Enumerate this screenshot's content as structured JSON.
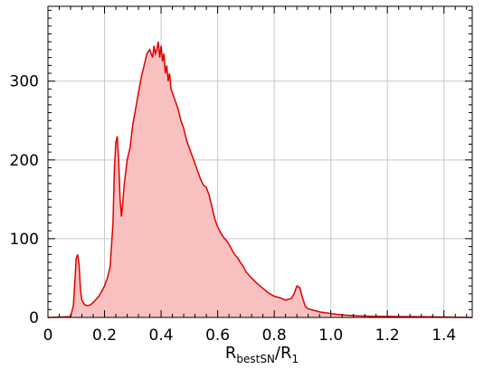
{
  "chart_data": {
    "type": "area",
    "xlabel_main": "R",
    "xlabel_sub1": "bestSN",
    "xlabel_sep": "/R",
    "xlabel_sub2": "1",
    "ylabel": "",
    "xlim": [
      0,
      1.5
    ],
    "ylim": [
      0,
      395
    ],
    "x_ticks": [
      0,
      0.2,
      0.4,
      0.6,
      0.8,
      1.0,
      1.2,
      1.4
    ],
    "x_tick_labels": [
      "0",
      "0.2",
      "0.4",
      "0.6",
      "0.8",
      "1.0",
      "1.2",
      "1.4"
    ],
    "y_ticks": [
      0,
      100,
      200,
      300
    ],
    "y_tick_labels": [
      "0",
      "100",
      "200",
      "300"
    ],
    "grid": true,
    "line_color": "#e00000",
    "fill_color": "#f9c0c0",
    "series": [
      {
        "x": [
          0.0,
          0.08,
          0.09,
          0.095,
          0.1,
          0.105,
          0.11,
          0.115,
          0.12,
          0.13,
          0.14,
          0.15,
          0.16,
          0.17,
          0.18,
          0.19,
          0.2,
          0.21,
          0.22,
          0.23,
          0.235,
          0.24,
          0.245,
          0.25,
          0.255,
          0.26,
          0.265,
          0.27,
          0.28,
          0.29,
          0.3,
          0.31,
          0.32,
          0.33,
          0.34,
          0.35,
          0.36,
          0.37,
          0.375,
          0.38,
          0.385,
          0.39,
          0.395,
          0.4,
          0.405,
          0.41,
          0.415,
          0.42,
          0.425,
          0.43,
          0.435,
          0.44,
          0.45,
          0.46,
          0.47,
          0.48,
          0.49,
          0.5,
          0.51,
          0.52,
          0.53,
          0.54,
          0.55,
          0.56,
          0.57,
          0.58,
          0.59,
          0.6,
          0.61,
          0.62,
          0.63,
          0.64,
          0.65,
          0.66,
          0.67,
          0.68,
          0.69,
          0.7,
          0.72,
          0.74,
          0.76,
          0.78,
          0.8,
          0.82,
          0.84,
          0.86,
          0.87,
          0.88,
          0.89,
          0.9,
          0.91,
          0.92,
          0.94,
          0.96,
          0.98,
          1.0,
          1.02,
          1.05,
          1.1,
          1.15,
          1.2,
          1.25,
          1.3,
          1.4,
          1.5
        ],
        "y": [
          0,
          1,
          15,
          45,
          75,
          80,
          68,
          35,
          22,
          16,
          15,
          16,
          19,
          23,
          27,
          33,
          40,
          50,
          65,
          120,
          190,
          222,
          230,
          200,
          150,
          128,
          148,
          170,
          200,
          215,
          245,
          265,
          285,
          305,
          320,
          335,
          340,
          330,
          345,
          335,
          340,
          350,
          330,
          345,
          325,
          335,
          310,
          320,
          300,
          310,
          290,
          285,
          275,
          265,
          250,
          240,
          225,
          215,
          205,
          195,
          185,
          175,
          168,
          165,
          155,
          140,
          125,
          115,
          108,
          102,
          98,
          93,
          86,
          80,
          76,
          70,
          65,
          58,
          50,
          43,
          37,
          31,
          27,
          25,
          22,
          24,
          30,
          40,
          38,
          25,
          14,
          11,
          9,
          7,
          6,
          5,
          4,
          3,
          2,
          1.5,
          1.5,
          1,
          1,
          0.5,
          0
        ]
      }
    ]
  }
}
